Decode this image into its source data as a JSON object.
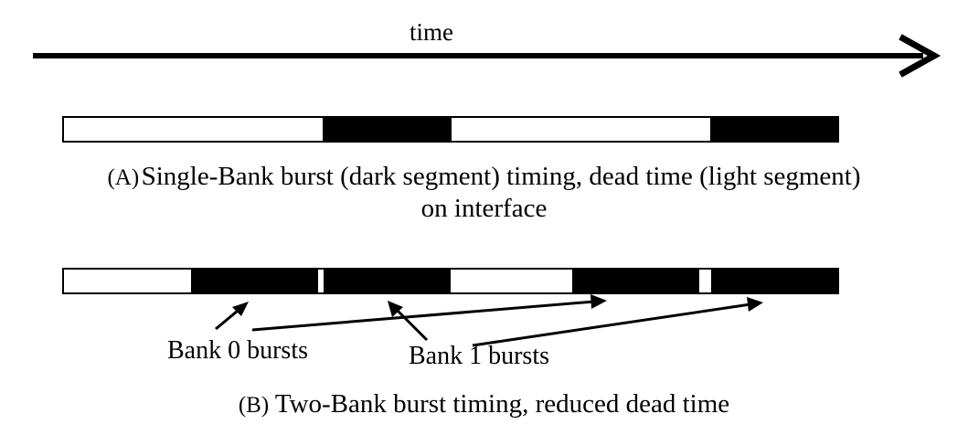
{
  "time_label": "time",
  "caption_a": {
    "prefix": "(A)",
    "line1": "Single-Bank burst (dark segment) timing, dead time (light segment)",
    "line2": "on interface"
  },
  "caption_b": {
    "prefix": "(B)",
    "text": "Two-Bank burst timing, reduced dead time"
  },
  "bank0_label": "Bank 0 bursts",
  "bank1_label": "Bank 1 bursts",
  "colors": {
    "burst": "#000000",
    "dead_time": "#ffffff",
    "outline": "#000000"
  }
}
